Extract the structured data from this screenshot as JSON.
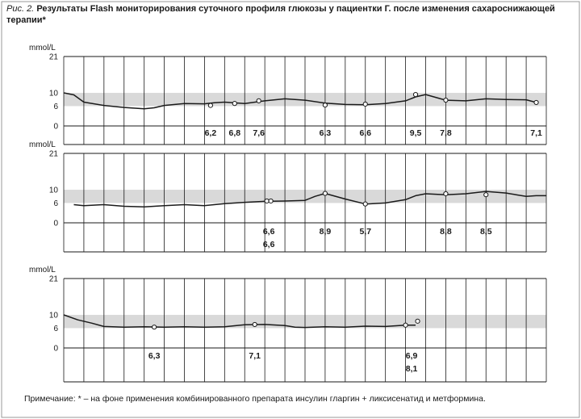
{
  "caption": {
    "label": "Рис. 2.",
    "title": "Результаты Flash мониторирования суточного профиля глюкозы у пациентки Г. после изменения сахароснижающей терапии*"
  },
  "note": "Примечание: * – на фоне применения комбинированного препарата инсулин гларгин + ликсисенатид и метформина.",
  "colors": {
    "target_band": "#d9d9d9",
    "line": "#1a1a1a",
    "grid": "#1a1a1a"
  },
  "chart_data": [
    {
      "type": "line",
      "ylabel": "mmol/L",
      "y_ticks": [
        0,
        6,
        10,
        21
      ],
      "target_range": [
        6,
        10
      ],
      "x_range": [
        0,
        24
      ],
      "days": 24,
      "curve_x": [
        0,
        0.5,
        1,
        2,
        3,
        4,
        4.5,
        5,
        6,
        7,
        7.5,
        8,
        9,
        10,
        11,
        12,
        13,
        14,
        15,
        16,
        17,
        17.5,
        18,
        19,
        20,
        21,
        22,
        23,
        23.5
      ],
      "curve_y": [
        10,
        9.4,
        7.2,
        6.2,
        5.6,
        5.2,
        5.5,
        6.2,
        6.8,
        6.7,
        7.0,
        7.2,
        6.8,
        7.6,
        8.2,
        7.8,
        6.9,
        6.5,
        6.4,
        6.8,
        7.6,
        8.8,
        9.5,
        7.8,
        7.6,
        8.2,
        8.0,
        7.9,
        7.1
      ],
      "scan_points": [
        {
          "x": 7.3,
          "y": 6.2
        },
        {
          "x": 8.5,
          "y": 6.8
        },
        {
          "x": 9.7,
          "y": 7.6
        },
        {
          "x": 13.0,
          "y": 6.3
        },
        {
          "x": 15.0,
          "y": 6.6
        },
        {
          "x": 17.5,
          "y": 9.5
        },
        {
          "x": 19.0,
          "y": 7.8
        },
        {
          "x": 23.5,
          "y": 7.1
        }
      ],
      "labels": [
        {
          "x": 7.3,
          "row": 0,
          "text": "6,2"
        },
        {
          "x": 8.5,
          "row": 0,
          "text": "6,8"
        },
        {
          "x": 9.7,
          "row": 0,
          "text": "7,6"
        },
        {
          "x": 13.0,
          "row": 0,
          "text": "6,3"
        },
        {
          "x": 15.0,
          "row": 0,
          "text": "6,6"
        },
        {
          "x": 17.5,
          "row": 0,
          "text": "9,5"
        },
        {
          "x": 19.0,
          "row": 0,
          "text": "7,8"
        },
        {
          "x": 23.5,
          "row": 0,
          "text": "7,1"
        }
      ]
    },
    {
      "type": "line",
      "ylabel": "mmol/L",
      "y_ticks": [
        0,
        6,
        10,
        21
      ],
      "target_range": [
        6,
        10
      ],
      "x_range": [
        0,
        24
      ],
      "days": 24,
      "curve_x": [
        0.5,
        1,
        2,
        3,
        4,
        4.5,
        5,
        6,
        7,
        8,
        9,
        10,
        11,
        12,
        12.5,
        13,
        14,
        15,
        16,
        17,
        17.5,
        18,
        19,
        20,
        21,
        22,
        22.5,
        23,
        23.5,
        24
      ],
      "curve_y": [
        5.5,
        5.2,
        5.5,
        5.0,
        4.8,
        5.0,
        5.2,
        5.5,
        5.2,
        5.8,
        6.2,
        6.5,
        6.6,
        6.8,
        8.0,
        8.9,
        7.2,
        5.7,
        6.0,
        7.0,
        8.2,
        8.8,
        8.5,
        8.8,
        9.5,
        9.0,
        8.5,
        8.0,
        8.2,
        8.2
      ],
      "scan_points": [
        {
          "x": 10.1,
          "y": 6.6
        },
        {
          "x": 10.3,
          "y": 6.6
        },
        {
          "x": 13.0,
          "y": 8.9
        },
        {
          "x": 15.0,
          "y": 5.7
        },
        {
          "x": 19.0,
          "y": 8.8
        },
        {
          "x": 21.0,
          "y": 8.5
        }
      ],
      "labels": [
        {
          "x": 10.2,
          "row": 0,
          "text": "6,6"
        },
        {
          "x": 10.2,
          "row": 1,
          "text": "6,6"
        },
        {
          "x": 13.0,
          "row": 0,
          "text": "8,9"
        },
        {
          "x": 15.0,
          "row": 0,
          "text": "5,7"
        },
        {
          "x": 19.0,
          "row": 0,
          "text": "8,8"
        },
        {
          "x": 21.0,
          "row": 0,
          "text": "8,5"
        }
      ]
    },
    {
      "type": "line",
      "ylabel": "mmol/L",
      "y_ticks": [
        0,
        6,
        10,
        21
      ],
      "target_range": [
        6,
        10
      ],
      "x_range": [
        0,
        24
      ],
      "days": 24,
      "curve_x": [
        0,
        0.7,
        1.4,
        2,
        3,
        4,
        5,
        6,
        7,
        8,
        9,
        10,
        11,
        11.5,
        12,
        13,
        14,
        15,
        16,
        17,
        17.5
      ],
      "curve_y": [
        10.0,
        8.5,
        7.5,
        6.5,
        6.3,
        6.4,
        6.3,
        6.4,
        6.3,
        6.4,
        7.0,
        7.1,
        6.8,
        6.3,
        6.2,
        6.4,
        6.3,
        6.6,
        6.5,
        6.9,
        6.9
      ],
      "scan_points": [
        {
          "x": 4.5,
          "y": 6.3
        },
        {
          "x": 9.5,
          "y": 7.1
        },
        {
          "x": 17.0,
          "y": 6.9
        },
        {
          "x": 17.6,
          "y": 8.1
        }
      ],
      "labels": [
        {
          "x": 4.5,
          "row": 0,
          "text": "6,3"
        },
        {
          "x": 9.5,
          "row": 0,
          "text": "7,1"
        },
        {
          "x": 17.3,
          "row": 0,
          "text": "6,9"
        },
        {
          "x": 17.3,
          "row": 1,
          "text": "8,1"
        }
      ]
    }
  ]
}
